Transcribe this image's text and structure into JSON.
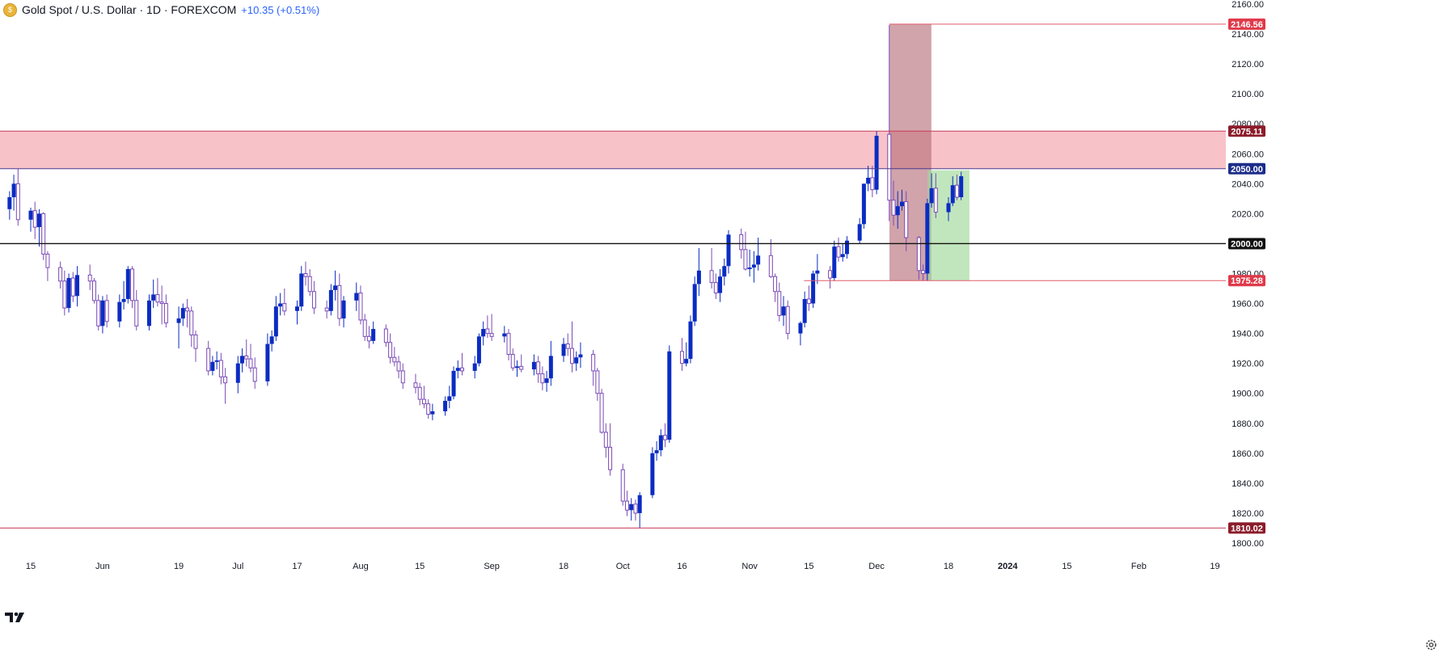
{
  "header": {
    "symbol_title": "Gold Spot / U.S. Dollar · 1D · FOREXCOM",
    "change": "+10.35 (+0.51%)"
  },
  "icons": {
    "symbol": "gold-coin-icon",
    "brand": "tradingview-logo-icon",
    "settings": "gear-icon"
  },
  "colors": {
    "bull_candle": "#0b2cc2",
    "bear_candle": "#7b4bb5",
    "resistance_zone": "#f8c2c9",
    "resistance_line": "#c63c57",
    "support_line": "#e05c6a",
    "pivot_line": "#111111",
    "range_box_red": "#b56a76",
    "range_box_green": "#9fd89a",
    "label_red": "#e03a4a",
    "label_darkred": "#8c1c2b",
    "label_navy": "#1c2d8a",
    "label_black": "#111111"
  },
  "chart_data": {
    "type": "candlestick",
    "title": "Gold Spot / U.S. Dollar · 1D · FOREXCOM",
    "ylim": [
      1800,
      2160
    ],
    "grid": false,
    "y_ticks": [
      "2160.00",
      "2140.00",
      "2120.00",
      "2100.00",
      "2080.00",
      "2060.00",
      "2040.00",
      "2020.00",
      "2000.00",
      "1980.00",
      "1960.00",
      "1940.00",
      "1920.00",
      "1900.00",
      "1880.00",
      "1860.00",
      "1840.00",
      "1820.00",
      "1800.00"
    ],
    "x_ticks": [
      {
        "label": "15",
        "date": "2023-05-15"
      },
      {
        "label": "Jun",
        "date": "2023-06-01"
      },
      {
        "label": "19",
        "date": "2023-06-19"
      },
      {
        "label": "Jul",
        "date": "2023-07-03"
      },
      {
        "label": "17",
        "date": "2023-07-17"
      },
      {
        "label": "Aug",
        "date": "2023-08-01"
      },
      {
        "label": "15",
        "date": "2023-08-15"
      },
      {
        "label": "Sep",
        "date": "2023-09-01"
      },
      {
        "label": "18",
        "date": "2023-09-18"
      },
      {
        "label": "Oct",
        "date": "2023-10-02"
      },
      {
        "label": "16",
        "date": "2023-10-16"
      },
      {
        "label": "Nov",
        "date": "2023-11-01"
      },
      {
        "label": "15",
        "date": "2023-11-15"
      },
      {
        "label": "Dec",
        "date": "2023-12-01"
      },
      {
        "label": "18",
        "date": "2023-12-18"
      },
      {
        "label": "2024",
        "date": "2024-01-01"
      },
      {
        "label": "15",
        "date": "2024-01-15"
      },
      {
        "label": "Feb",
        "date": "2024-02-01"
      },
      {
        "label": "19",
        "date": "2024-02-19"
      }
    ],
    "levels": [
      {
        "name": "zone-top",
        "value": 2075.11,
        "label": "2075.11"
      },
      {
        "name": "zone-bottom",
        "value": 2050.0,
        "label": "2050.00"
      },
      {
        "name": "pivot",
        "value": 2000.0,
        "label": "2000.00"
      },
      {
        "name": "support",
        "value": 1975.28,
        "label": "1975.28"
      },
      {
        "name": "low",
        "value": 1810.02,
        "label": "1810.02"
      },
      {
        "name": "high",
        "value": 2146.56,
        "label": "2146.56"
      }
    ],
    "resistance_zone": {
      "from": 2050.0,
      "to": 2075.11
    },
    "boxes": [
      {
        "color": "red",
        "start": "2023-12-05",
        "end": "2023-12-13",
        "top": 2146.56,
        "bottom": 1975.28
      },
      {
        "color": "green",
        "start": "2023-12-14",
        "end": "2023-12-22",
        "top": 2049,
        "bottom": 1975.28
      }
    ],
    "ohlc": [
      [
        "2023-05-10",
        2023,
        2035,
        2016,
        2031
      ],
      [
        "2023-05-11",
        2031,
        2046,
        2022,
        2040
      ],
      [
        "2023-05-12",
        2040,
        2050,
        2012,
        2016
      ],
      [
        "2023-05-15",
        2016,
        2024,
        2008,
        2022
      ],
      [
        "2023-05-16",
        2022,
        2028,
        2003,
        2011
      ],
      [
        "2023-05-17",
        2011,
        2023,
        1998,
        2020
      ],
      [
        "2023-05-18",
        2020,
        2021,
        1989,
        1993
      ],
      [
        "2023-05-19",
        1993,
        1995,
        1975,
        1984
      ],
      [
        "2023-05-22",
        1984,
        1988,
        1970,
        1975
      ],
      [
        "2023-05-23",
        1975,
        1982,
        1952,
        1957
      ],
      [
        "2023-05-24",
        1957,
        1980,
        1954,
        1977
      ],
      [
        "2023-05-25",
        1977,
        1981,
        1961,
        1965
      ],
      [
        "2023-05-26",
        1965,
        1985,
        1958,
        1979
      ],
      [
        "2023-05-29",
        1979,
        1986,
        1969,
        1975
      ],
      [
        "2023-05-30",
        1975,
        1977,
        1960,
        1962
      ],
      [
        "2023-05-31",
        1962,
        1966,
        1942,
        1945
      ],
      [
        "2023-06-01",
        1945,
        1965,
        1940,
        1962
      ],
      [
        "2023-06-02",
        1962,
        1966,
        1944,
        1948
      ],
      [
        "2023-06-05",
        1948,
        1966,
        1944,
        1961
      ],
      [
        "2023-06-06",
        1961,
        1975,
        1956,
        1963
      ],
      [
        "2023-06-07",
        1963,
        1985,
        1960,
        1983
      ],
      [
        "2023-06-08",
        1983,
        1985,
        1957,
        1962
      ],
      [
        "2023-06-09",
        1962,
        1969,
        1942,
        1945
      ],
      [
        "2023-06-12",
        1945,
        1966,
        1942,
        1962
      ],
      [
        "2023-06-13",
        1962,
        1976,
        1957,
        1966
      ],
      [
        "2023-06-14",
        1966,
        1977,
        1958,
        1961
      ],
      [
        "2023-06-15",
        1961,
        1972,
        1946,
        1960
      ],
      [
        "2023-06-16",
        1960,
        1966,
        1944,
        1947
      ],
      [
        "2023-06-19",
        1947,
        1958,
        1930,
        1950
      ],
      [
        "2023-06-20",
        1950,
        1960,
        1945,
        1957
      ],
      [
        "2023-06-21",
        1957,
        1963,
        1944,
        1955
      ],
      [
        "2023-06-22",
        1955,
        1958,
        1931,
        1939
      ],
      [
        "2023-06-23",
        1939,
        1942,
        1921,
        1930
      ],
      [
        "2023-06-26",
        1930,
        1935,
        1912,
        1915
      ],
      [
        "2023-06-27",
        1915,
        1925,
        1912,
        1921
      ],
      [
        "2023-06-28",
        1921,
        1928,
        1916,
        1922
      ],
      [
        "2023-06-29",
        1922,
        1927,
        1906,
        1911
      ],
      [
        "2023-06-30",
        1911,
        1917,
        1893,
        1907
      ],
      [
        "2023-07-03",
        1907,
        1925,
        1900,
        1920
      ],
      [
        "2023-07-04",
        1920,
        1930,
        1914,
        1925
      ],
      [
        "2023-07-05",
        1925,
        1936,
        1918,
        1923
      ],
      [
        "2023-07-06",
        1923,
        1933,
        1914,
        1917
      ],
      [
        "2023-07-07",
        1917,
        1924,
        1903,
        1908
      ],
      [
        "2023-07-10",
        1908,
        1940,
        1905,
        1933
      ],
      [
        "2023-07-11",
        1933,
        1942,
        1928,
        1938
      ],
      [
        "2023-07-12",
        1938,
        1965,
        1935,
        1958
      ],
      [
        "2023-07-13",
        1958,
        1967,
        1952,
        1960
      ],
      [
        "2023-07-14",
        1960,
        1970,
        1952,
        1955
      ],
      [
        "2023-07-17",
        1955,
        1962,
        1946,
        1958
      ],
      [
        "2023-07-18",
        1958,
        1985,
        1955,
        1980
      ],
      [
        "2023-07-19",
        1980,
        1988,
        1972,
        1978
      ],
      [
        "2023-07-20",
        1978,
        1983,
        1965,
        1968
      ],
      [
        "2023-07-21",
        1968,
        1975,
        1953,
        1957
      ],
      [
        "2023-07-24",
        1957,
        1962,
        1950,
        1955
      ],
      [
        "2023-07-25",
        1955,
        1973,
        1952,
        1969
      ],
      [
        "2023-07-26",
        1969,
        1982,
        1962,
        1972
      ],
      [
        "2023-07-27",
        1972,
        1980,
        1945,
        1950
      ],
      [
        "2023-07-28",
        1950,
        1965,
        1944,
        1962
      ],
      [
        "2023-07-31",
        1962,
        1974,
        1955,
        1967
      ],
      [
        "2023-08-01",
        1967,
        1972,
        1946,
        1949
      ],
      [
        "2023-08-02",
        1949,
        1953,
        1935,
        1938
      ],
      [
        "2023-08-03",
        1938,
        1945,
        1930,
        1935
      ],
      [
        "2023-08-04",
        1935,
        1948,
        1933,
        1943
      ],
      [
        "2023-08-07",
        1943,
        1946,
        1931,
        1934
      ],
      [
        "2023-08-08",
        1934,
        1940,
        1920,
        1924
      ],
      [
        "2023-08-09",
        1924,
        1931,
        1918,
        1921
      ],
      [
        "2023-08-10",
        1921,
        1925,
        1910,
        1915
      ],
      [
        "2023-08-11",
        1915,
        1920,
        1903,
        1907
      ],
      [
        "2023-08-14",
        1907,
        1913,
        1900,
        1904
      ],
      [
        "2023-08-15",
        1904,
        1907,
        1892,
        1896
      ],
      [
        "2023-08-16",
        1896,
        1905,
        1890,
        1893
      ],
      [
        "2023-08-17",
        1893,
        1896,
        1883,
        1886
      ],
      [
        "2023-08-18",
        1886,
        1893,
        1882,
        1888
      ],
      [
        "2023-08-21",
        1888,
        1898,
        1885,
        1895
      ],
      [
        "2023-08-22",
        1895,
        1905,
        1890,
        1898
      ],
      [
        "2023-08-23",
        1898,
        1918,
        1896,
        1915
      ],
      [
        "2023-08-24",
        1915,
        1922,
        1910,
        1917
      ],
      [
        "2023-08-25",
        1917,
        1927,
        1912,
        1915
      ],
      [
        "2023-08-28",
        1915,
        1925,
        1910,
        1920
      ],
      [
        "2023-08-29",
        1920,
        1940,
        1918,
        1938
      ],
      [
        "2023-08-30",
        1938,
        1948,
        1932,
        1943
      ],
      [
        "2023-08-31",
        1943,
        1952,
        1937,
        1940
      ],
      [
        "2023-09-01",
        1940,
        1953,
        1935,
        1938
      ],
      [
        "2023-09-04",
        1938,
        1945,
        1934,
        1940
      ],
      [
        "2023-09-05",
        1940,
        1943,
        1922,
        1926
      ],
      [
        "2023-09-06",
        1926,
        1930,
        1915,
        1917
      ],
      [
        "2023-09-07",
        1917,
        1922,
        1911,
        1918
      ],
      [
        "2023-09-08",
        1918,
        1926,
        1914,
        1916
      ],
      [
        "2023-09-11",
        1916,
        1926,
        1912,
        1921
      ],
      [
        "2023-09-12",
        1921,
        1925,
        1907,
        1913
      ],
      [
        "2023-09-13",
        1913,
        1918,
        1902,
        1907
      ],
      [
        "2023-09-14",
        1907,
        1915,
        1901,
        1910
      ],
      [
        "2023-09-15",
        1910,
        1935,
        1905,
        1925
      ],
      [
        "2023-09-18",
        1925,
        1937,
        1921,
        1933
      ],
      [
        "2023-09-19",
        1933,
        1940,
        1925,
        1930
      ],
      [
        "2023-09-20",
        1930,
        1948,
        1914,
        1920
      ],
      [
        "2023-09-21",
        1920,
        1928,
        1915,
        1924
      ],
      [
        "2023-09-22",
        1924,
        1934,
        1917,
        1926
      ],
      [
        "2023-09-25",
        1926,
        1929,
        1905,
        1915
      ],
      [
        "2023-09-26",
        1915,
        1917,
        1895,
        1900
      ],
      [
        "2023-09-27",
        1900,
        1903,
        1873,
        1874
      ],
      [
        "2023-09-28",
        1874,
        1880,
        1857,
        1864
      ],
      [
        "2023-09-29",
        1864,
        1880,
        1845,
        1849
      ],
      [
        "2023-10-02",
        1849,
        1853,
        1825,
        1828
      ],
      [
        "2023-10-03",
        1828,
        1835,
        1818,
        1822
      ],
      [
        "2023-10-04",
        1822,
        1830,
        1815,
        1826
      ],
      [
        "2023-10-05",
        1826,
        1829,
        1815,
        1820
      ],
      [
        "2023-10-06",
        1820,
        1834,
        1810,
        1832
      ],
      [
        "2023-10-09",
        1832,
        1864,
        1830,
        1860
      ],
      [
        "2023-10-10",
        1860,
        1868,
        1855,
        1862
      ],
      [
        "2023-10-11",
        1862,
        1876,
        1858,
        1872
      ],
      [
        "2023-10-12",
        1872,
        1880,
        1864,
        1869
      ],
      [
        "2023-10-13",
        1869,
        1932,
        1867,
        1928
      ],
      [
        "2023-10-16",
        1928,
        1937,
        1915,
        1920
      ],
      [
        "2023-10-17",
        1920,
        1934,
        1918,
        1923
      ],
      [
        "2023-10-18",
        1923,
        1952,
        1920,
        1948
      ],
      [
        "2023-10-19",
        1948,
        1978,
        1945,
        1973
      ],
      [
        "2023-10-20",
        1973,
        1997,
        1965,
        1982
      ],
      [
        "2023-10-23",
        1982,
        1997,
        1970,
        1974
      ],
      [
        "2023-10-24",
        1974,
        1980,
        1963,
        1967
      ],
      [
        "2023-10-25",
        1967,
        1983,
        1961,
        1978
      ],
      [
        "2023-10-26",
        1978,
        1990,
        1972,
        1985
      ],
      [
        "2023-10-27",
        1985,
        2009,
        1980,
        2006
      ],
      [
        "2023-10-30",
        2006,
        2010,
        1990,
        1996
      ],
      [
        "2023-10-31",
        1996,
        2008,
        1982,
        1983
      ],
      [
        "2023-11-01",
        1983,
        1996,
        1978,
        1984
      ],
      [
        "2023-11-02",
        1984,
        1995,
        1974,
        1986
      ],
      [
        "2023-11-03",
        1986,
        2004,
        1982,
        1992
      ],
      [
        "2023-11-06",
        1992,
        2003,
        1977,
        1978
      ],
      [
        "2023-11-07",
        1978,
        1980,
        1961,
        1968
      ],
      [
        "2023-11-08",
        1968,
        1974,
        1948,
        1952
      ],
      [
        "2023-11-09",
        1952,
        1965,
        1945,
        1958
      ],
      [
        "2023-11-10",
        1958,
        1962,
        1936,
        1940
      ],
      [
        "2023-11-13",
        1940,
        1948,
        1932,
        1947
      ],
      [
        "2023-11-14",
        1947,
        1968,
        1944,
        1963
      ],
      [
        "2023-11-15",
        1963,
        1972,
        1955,
        1960
      ],
      [
        "2023-11-16",
        1960,
        1982,
        1957,
        1980
      ],
      [
        "2023-11-17",
        1980,
        1993,
        1973,
        1982
      ],
      [
        "2023-11-20",
        1982,
        1985,
        1970,
        1977
      ],
      [
        "2023-11-21",
        1977,
        2002,
        1975,
        1998
      ],
      [
        "2023-11-22",
        1998,
        2004,
        1988,
        1991
      ],
      [
        "2023-11-23",
        1991,
        2000,
        1988,
        1993
      ],
      [
        "2023-11-24",
        1993,
        2005,
        1990,
        2002
      ],
      [
        "2023-11-27",
        2002,
        2017,
        2000,
        2013
      ],
      [
        "2023-11-28",
        2013,
        2040,
        2010,
        2040
      ],
      [
        "2023-11-29",
        2040,
        2052,
        2035,
        2044
      ],
      [
        "2023-11-30",
        2044,
        2052,
        2031,
        2036
      ],
      [
        "2023-12-01",
        2036,
        2075,
        2033,
        2072
      ],
      [
        "2023-12-04",
        2073,
        2146,
        2015,
        2029
      ],
      [
        "2023-12-05",
        2029,
        2042,
        2012,
        2019
      ],
      [
        "2023-12-06",
        2019,
        2035,
        2010,
        2025
      ],
      [
        "2023-12-07",
        2025,
        2036,
        2022,
        2028
      ],
      [
        "2023-12-08",
        2028,
        2035,
        1995,
        2004
      ],
      [
        "2023-12-11",
        2004,
        2005,
        1976,
        1982
      ],
      [
        "2023-12-12",
        1982,
        1986,
        1975,
        1980
      ],
      [
        "2023-12-13",
        1980,
        2030,
        1975,
        2027
      ],
      [
        "2023-12-14",
        2027,
        2047,
        2024,
        2037
      ],
      [
        "2023-12-15",
        2037,
        2047,
        2017,
        2021
      ],
      [
        "2023-12-18",
        2021,
        2031,
        2015,
        2027
      ],
      [
        "2023-12-19",
        2027,
        2045,
        2025,
        2039
      ],
      [
        "2023-12-20",
        2039,
        2046,
        2029,
        2031
      ],
      [
        "2023-12-21",
        2031,
        2048,
        2029,
        2045
      ]
    ]
  }
}
